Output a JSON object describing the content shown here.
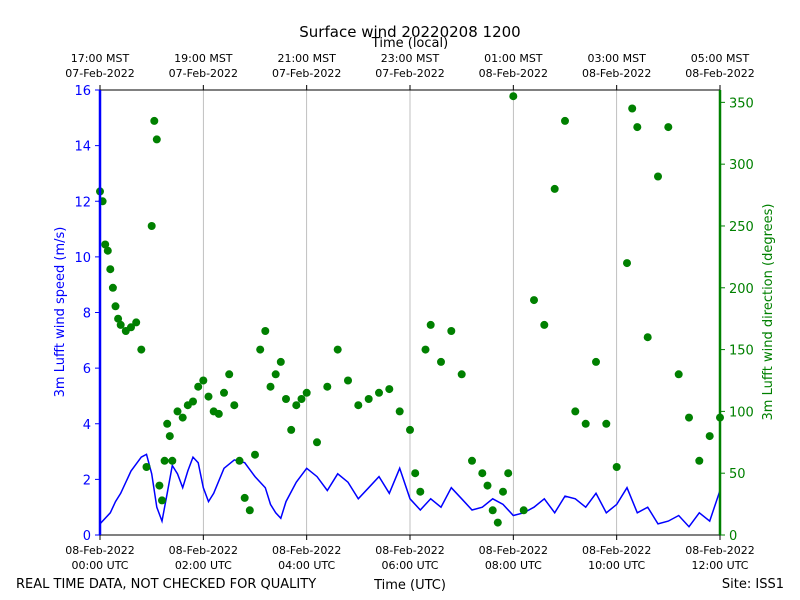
{
  "chart_data": {
    "type": "line+scatter",
    "title": "Surface wind 20220208 1200",
    "top_axis_label": "Time (local)",
    "xlabel": "Time (UTC)",
    "ylabel_left": "3m Lufft wind speed (m/s)",
    "ylabel_right": "3m Lufft wind direction (degrees)",
    "x_unit": "hours since 08-Feb-2022 00:00 UTC",
    "xlim": [
      0,
      12
    ],
    "ylim_left": [
      0,
      16
    ],
    "ylim_right": [
      0,
      360
    ],
    "left_ticks": [
      "0",
      "2",
      "4",
      "6",
      "8",
      "10",
      "12",
      "14",
      "16"
    ],
    "right_ticks": [
      "0",
      "50",
      "100",
      "150",
      "200",
      "250",
      "300",
      "350"
    ],
    "bottom_ticks": [
      {
        "date": "08-Feb-2022",
        "time": "00:00 UTC"
      },
      {
        "date": "08-Feb-2022",
        "time": "02:00 UTC"
      },
      {
        "date": "08-Feb-2022",
        "time": "04:00 UTC"
      },
      {
        "date": "08-Feb-2022",
        "time": "06:00 UTC"
      },
      {
        "date": "08-Feb-2022",
        "time": "08:00 UTC"
      },
      {
        "date": "08-Feb-2022",
        "time": "10:00 UTC"
      },
      {
        "date": "08-Feb-2022",
        "time": "12:00 UTC"
      }
    ],
    "top_ticks": [
      {
        "time": "17:00 MST",
        "date": "07-Feb-2022"
      },
      {
        "time": "19:00 MST",
        "date": "07-Feb-2022"
      },
      {
        "time": "21:00 MST",
        "date": "07-Feb-2022"
      },
      {
        "time": "23:00 MST",
        "date": "07-Feb-2022"
      },
      {
        "time": "01:00 MST",
        "date": "08-Feb-2022"
      },
      {
        "time": "03:00 MST",
        "date": "08-Feb-2022"
      },
      {
        "time": "05:00 MST",
        "date": "08-Feb-2022"
      }
    ],
    "grid": "vertical",
    "series": [
      {
        "name": "3m Lufft wind speed (m/s)",
        "color": "#0000ff",
        "kind": "line",
        "axis": "left",
        "x": [
          0,
          0.2,
          0.3,
          0.4,
          0.6,
          0.8,
          0.9,
          1.0,
          1.1,
          1.2,
          1.3,
          1.4,
          1.5,
          1.6,
          1.7,
          1.8,
          1.9,
          2.0,
          2.1,
          2.2,
          2.4,
          2.6,
          2.8,
          3.0,
          3.2,
          3.3,
          3.4,
          3.5,
          3.6,
          3.8,
          4.0,
          4.2,
          4.4,
          4.6,
          4.8,
          5.0,
          5.2,
          5.4,
          5.6,
          5.8,
          6.0,
          6.2,
          6.4,
          6.6,
          6.8,
          7.0,
          7.2,
          7.4,
          7.6,
          7.8,
          8.0,
          8.2,
          8.4,
          8.6,
          8.8,
          9.0,
          9.2,
          9.4,
          9.6,
          9.8,
          10.0,
          10.2,
          10.4,
          10.6,
          10.8,
          11.0,
          11.2,
          11.4,
          11.6,
          11.8,
          12.0
        ],
        "values": [
          0.4,
          0.8,
          1.2,
          1.5,
          2.3,
          2.8,
          2.9,
          2.2,
          1.0,
          0.5,
          1.5,
          2.5,
          2.2,
          1.7,
          2.3,
          2.8,
          2.6,
          1.7,
          1.2,
          1.5,
          2.4,
          2.7,
          2.6,
          2.1,
          1.7,
          1.1,
          0.8,
          0.6,
          1.2,
          1.9,
          2.4,
          2.1,
          1.6,
          2.2,
          1.9,
          1.3,
          1.7,
          2.1,
          1.5,
          2.4,
          1.3,
          0.9,
          1.3,
          1.0,
          1.7,
          1.3,
          0.9,
          1.0,
          1.3,
          1.1,
          0.7,
          0.8,
          1.0,
          1.3,
          0.8,
          1.4,
          1.3,
          1.0,
          1.5,
          0.8,
          1.1,
          1.7,
          0.8,
          1.0,
          0.4,
          0.5,
          0.7,
          0.3,
          0.8,
          0.5,
          1.6
        ]
      },
      {
        "name": "3m Lufft wind direction (degrees)",
        "color": "#008000",
        "kind": "scatter",
        "axis": "right",
        "x": [
          0,
          0.05,
          0.1,
          0.15,
          0.2,
          0.25,
          0.3,
          0.35,
          0.4,
          0.5,
          0.6,
          0.7,
          0.8,
          0.9,
          1.0,
          1.05,
          1.1,
          1.15,
          1.2,
          1.25,
          1.3,
          1.35,
          1.4,
          1.5,
          1.6,
          1.7,
          1.8,
          1.9,
          2.0,
          2.1,
          2.2,
          2.3,
          2.4,
          2.5,
          2.6,
          2.7,
          2.8,
          2.9,
          3.0,
          3.1,
          3.2,
          3.3,
          3.4,
          3.5,
          3.6,
          3.7,
          3.8,
          3.9,
          4.0,
          4.2,
          4.4,
          4.6,
          4.8,
          5.0,
          5.2,
          5.4,
          5.6,
          5.8,
          6.0,
          6.1,
          6.2,
          6.3,
          6.4,
          6.6,
          6.8,
          7.0,
          7.2,
          7.4,
          7.5,
          7.6,
          7.7,
          7.8,
          7.9,
          8.0,
          8.2,
          8.4,
          8.6,
          8.8,
          9.0,
          9.2,
          9.4,
          9.6,
          9.8,
          10.0,
          10.2,
          10.3,
          10.4,
          10.6,
          10.8,
          11.0,
          11.2,
          11.4,
          11.6,
          11.8,
          12.0
        ],
        "values": [
          278,
          270,
          235,
          230,
          215,
          200,
          185,
          175,
          170,
          165,
          168,
          172,
          150,
          55,
          250,
          335,
          320,
          40,
          28,
          60,
          90,
          80,
          60,
          100,
          95,
          105,
          108,
          120,
          125,
          112,
          100,
          98,
          115,
          130,
          105,
          60,
          30,
          20,
          65,
          150,
          165,
          120,
          130,
          140,
          110,
          85,
          105,
          110,
          115,
          75,
          120,
          150,
          125,
          105,
          110,
          115,
          118,
          100,
          85,
          50,
          35,
          150,
          170,
          140,
          165,
          130,
          60,
          50,
          40,
          20,
          10,
          35,
          50,
          355,
          20,
          190,
          170,
          280,
          335,
          100,
          90,
          140,
          90,
          55,
          220,
          345,
          330,
          160,
          290,
          330,
          130,
          95,
          60,
          80,
          95
        ]
      }
    ]
  },
  "footer": {
    "left": "REAL TIME DATA, NOT CHECKED FOR QUALITY",
    "right": "Site: ISS1"
  }
}
